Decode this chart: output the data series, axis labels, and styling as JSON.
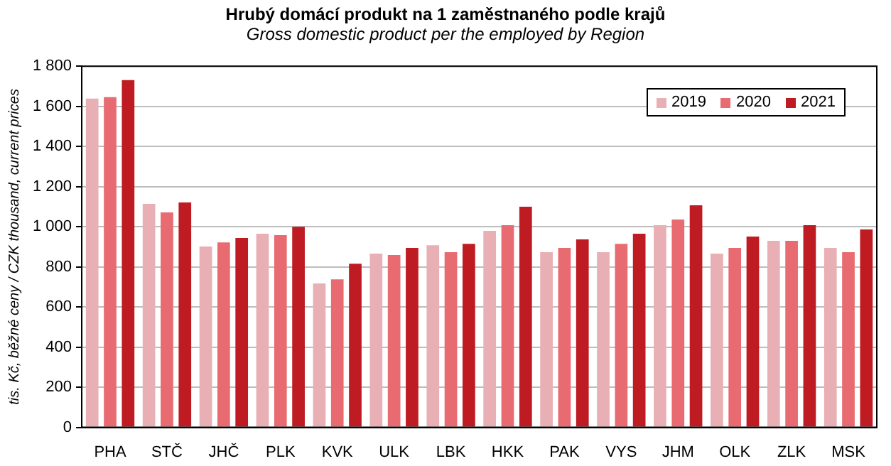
{
  "chart_data": {
    "type": "bar",
    "title": "Hrubý domácí produkt na 1 zaměstnaného podle krajů",
    "subtitle": "Gross domestic product per the employed by Region",
    "ylabel": "tis. Kč, běžné ceny / CZK thousand, current prices",
    "categories": [
      "PHA",
      "STČ",
      "JHČ",
      "PLK",
      "KVK",
      "ULK",
      "LBK",
      "HKK",
      "PAK",
      "VYS",
      "JHM",
      "OLK",
      "ZLK",
      "MSK"
    ],
    "series": [
      {
        "name": "2019",
        "color": "#e8b0b4",
        "values": [
          1639,
          1114,
          901,
          965,
          717,
          866,
          908,
          979,
          873,
          873,
          1008,
          866,
          930,
          894
        ]
      },
      {
        "name": "2020",
        "color": "#e96b72",
        "values": [
          1646,
          1071,
          922,
          958,
          738,
          859,
          873,
          1008,
          894,
          915,
          1036,
          894,
          930,
          873
        ]
      },
      {
        "name": "2021",
        "color": "#be1b22",
        "values": [
          1731,
          1121,
          944,
          1000,
          816,
          894,
          915,
          1100,
          937,
          965,
          1107,
          951,
          1008,
          986
        ]
      }
    ],
    "ylim": [
      0,
      1800
    ],
    "yticks": [
      0,
      200,
      400,
      600,
      800,
      {
        "value": 1000,
        "label": "1 000"
      },
      {
        "value": 1200,
        "label": "1 200"
      },
      {
        "value": 1400,
        "label": "1 400"
      },
      {
        "value": 1600,
        "label": "1 600"
      },
      {
        "value": 1800,
        "label": "1 800"
      }
    ],
    "grid": "y",
    "legend": "top right"
  }
}
